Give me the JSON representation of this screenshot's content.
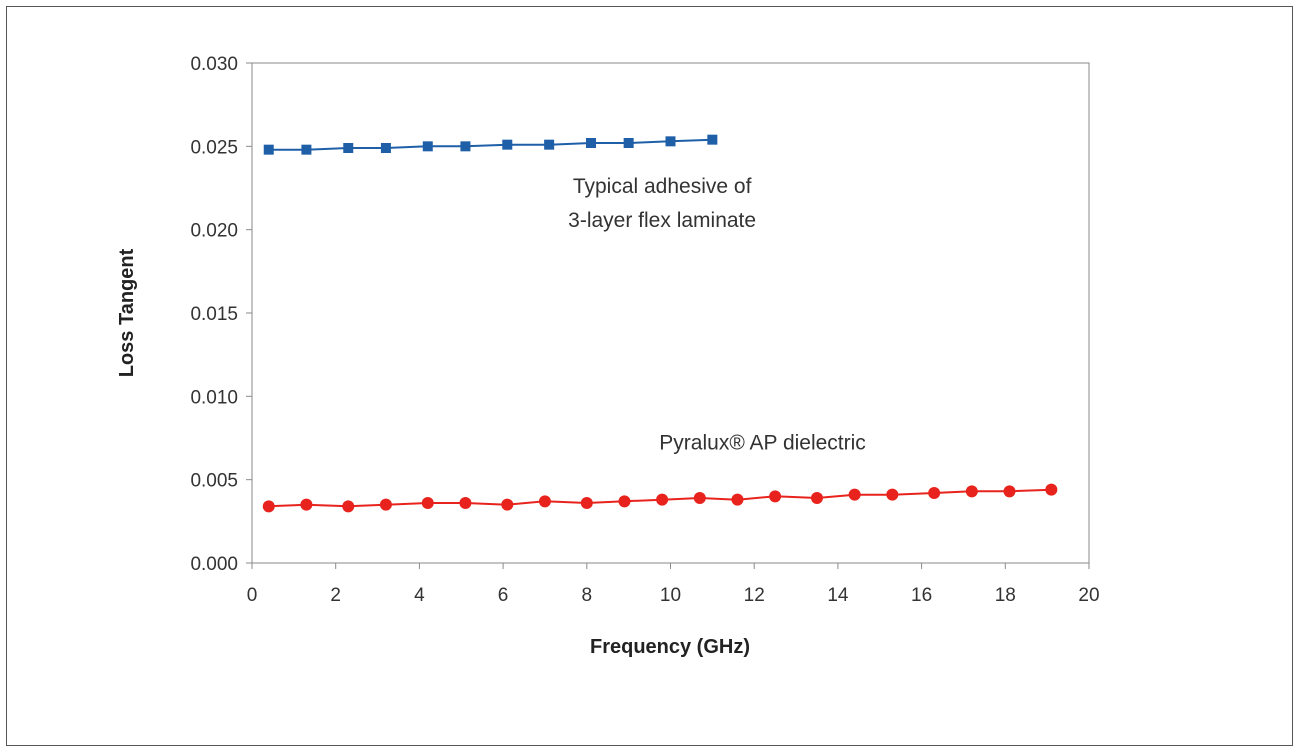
{
  "chart_data": {
    "type": "line",
    "title": "",
    "xlabel": "Frequency (GHz)",
    "ylabel": "Loss Tangent",
    "xlim": [
      0,
      20
    ],
    "ylim": [
      0,
      0.03
    ],
    "x_ticks": [
      0,
      2,
      4,
      6,
      8,
      10,
      12,
      14,
      16,
      18,
      20
    ],
    "y_ticks": [
      0,
      0.005,
      0.01,
      0.015,
      0.02,
      0.025,
      0.03
    ],
    "x_tick_labels": [
      "0",
      "2",
      "4",
      "6",
      "8",
      "10",
      "12",
      "14",
      "16",
      "18",
      "20"
    ],
    "y_tick_labels": [
      "0.000",
      "0.005",
      "0.010",
      "0.015",
      "0.020",
      "0.025",
      "0.030"
    ],
    "grid": false,
    "legend": "none",
    "series": [
      {
        "color": "#1f5fa8",
        "marker": "square",
        "x": [
          0.4,
          1.3,
          2.3,
          3.2,
          4.2,
          5.1,
          6.1,
          7.1,
          8.1,
          9.0,
          10.0,
          11.0
        ],
        "y": [
          0.0248,
          0.0248,
          0.0249,
          0.0249,
          0.025,
          0.025,
          0.0251,
          0.0251,
          0.0252,
          0.0252,
          0.0253,
          0.0254
        ]
      },
      {
        "color": "#e8231d",
        "marker": "circle",
        "x": [
          0.4,
          1.3,
          2.3,
          3.2,
          4.2,
          5.1,
          6.1,
          7.0,
          8.0,
          8.9,
          9.8,
          10.7,
          11.6,
          12.5,
          13.5,
          14.4,
          15.3,
          16.3,
          17.2,
          18.1,
          19.1
        ],
        "y": [
          0.0034,
          0.0035,
          0.0034,
          0.0035,
          0.0036,
          0.0036,
          0.0035,
          0.0037,
          0.0036,
          0.0037,
          0.0038,
          0.0039,
          0.0038,
          0.004,
          0.0039,
          0.0041,
          0.0041,
          0.0042,
          0.0043,
          0.0043,
          0.0044
        ]
      }
    ],
    "annotations": [
      {
        "lines": [
          "Typical adhesive of",
          "3-layer flex laminate"
        ],
        "x": 9.8,
        "y": 0.0222
      },
      {
        "lines": [
          "Pyralux® AP dielectric"
        ],
        "x": 12.2,
        "y": 0.0068
      }
    ]
  }
}
